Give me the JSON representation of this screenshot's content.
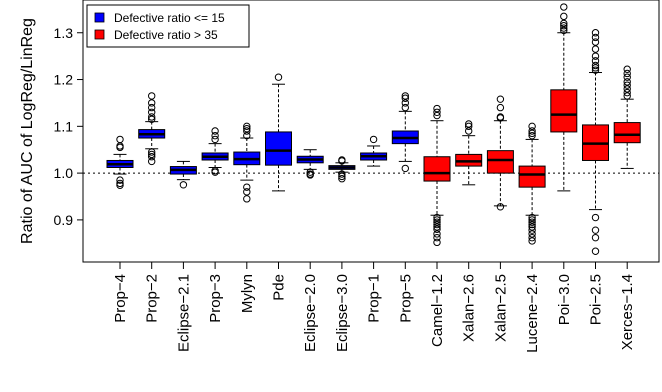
{
  "chart_data": {
    "type": "boxplot",
    "title": "",
    "xlabel": "",
    "ylabel": "Ratio of AUC of LogReg/LinReg",
    "ylim": [
      0.81,
      1.37
    ],
    "yticks": [
      0.9,
      1.0,
      1.1,
      1.2,
      1.3
    ],
    "ytick_labels": [
      "0.9",
      "1.0",
      "1.1",
      "1.2",
      "1.3"
    ],
    "reference_line": {
      "y": 1.0,
      "style": "dotted"
    },
    "legend": {
      "position": "top-left",
      "entries": [
        {
          "label": "Defective ratio <= 15",
          "color": "#0000ff"
        },
        {
          "label": "Defective ratio > 35",
          "color": "#ff0000"
        }
      ]
    },
    "boxes": [
      {
        "label": "Prop−4",
        "group": 0,
        "q1": 1.012,
        "median": 1.019,
        "q3": 1.027,
        "whisker_low": 0.998,
        "whisker_high": 1.04,
        "outliers": [
          1.055,
          1.058,
          1.072,
          0.985,
          0.978,
          0.974
        ]
      },
      {
        "label": "Prop−2",
        "group": 0,
        "q1": 1.075,
        "median": 1.083,
        "q3": 1.093,
        "whisker_low": 1.052,
        "whisker_high": 1.11,
        "outliers": [
          1.115,
          1.12,
          1.13,
          1.14,
          1.15,
          1.165,
          1.045,
          1.04,
          1.035,
          1.025
        ]
      },
      {
        "label": "Eclipse−2.1",
        "group": 0,
        "q1": 0.998,
        "median": 1.007,
        "q3": 1.014,
        "whisker_low": 0.986,
        "whisker_high": 1.025,
        "outliers": [
          0.975
        ]
      },
      {
        "label": "Prop−3",
        "group": 0,
        "q1": 1.028,
        "median": 1.035,
        "q3": 1.043,
        "whisker_low": 1.012,
        "whisker_high": 1.063,
        "outliers": [
          1.072,
          1.08,
          1.09,
          1.005,
          1.002
        ]
      },
      {
        "label": "Mylyn",
        "group": 0,
        "q1": 1.018,
        "median": 1.03,
        "q3": 1.045,
        "whisker_low": 0.985,
        "whisker_high": 1.075,
        "outliers": [
          1.08,
          1.09,
          1.095,
          1.1,
          0.97,
          0.96,
          0.945
        ]
      },
      {
        "label": "Pde",
        "group": 0,
        "q1": 1.017,
        "median": 1.048,
        "q3": 1.088,
        "whisker_low": 0.962,
        "whisker_high": 1.19,
        "outliers": [
          1.205
        ]
      },
      {
        "label": "Eclipse−2.0",
        "group": 0,
        "q1": 1.022,
        "median": 1.029,
        "q3": 1.036,
        "whisker_low": 1.008,
        "whisker_high": 1.05,
        "outliers": [
          1.002,
          0.998,
          0.996
        ]
      },
      {
        "label": "Eclipse−3.0",
        "group": 0,
        "q1": 1.008,
        "median": 1.012,
        "q3": 1.016,
        "whisker_low": 1.002,
        "whisker_high": 1.022,
        "outliers": [
          1.026,
          1.028,
          0.998,
          0.993,
          0.988
        ]
      },
      {
        "label": "Prop−1",
        "group": 0,
        "q1": 1.028,
        "median": 1.036,
        "q3": 1.043,
        "whisker_low": 1.015,
        "whisker_high": 1.058,
        "outliers": [
          1.072
        ]
      },
      {
        "label": "Prop−5",
        "group": 0,
        "q1": 1.063,
        "median": 1.075,
        "q3": 1.09,
        "whisker_low": 1.025,
        "whisker_high": 1.132,
        "outliers": [
          1.14,
          1.15,
          1.16,
          1.165,
          1.01
        ]
      },
      {
        "label": "Camel−1.2",
        "group": 1,
        "q1": 0.983,
        "median": 1.0,
        "q3": 1.035,
        "whisker_low": 0.91,
        "whisker_high": 1.112,
        "outliers": [
          1.123,
          1.13,
          1.138,
          0.905,
          0.9,
          0.895,
          0.89,
          0.885,
          0.88,
          0.87,
          0.862,
          0.852
        ]
      },
      {
        "label": "Xalan−2.6",
        "group": 1,
        "q1": 1.015,
        "median": 1.025,
        "q3": 1.04,
        "whisker_low": 0.975,
        "whisker_high": 1.08,
        "outliers": [
          1.09,
          1.1,
          1.105
        ]
      },
      {
        "label": "Xalan−2.5",
        "group": 1,
        "q1": 1.0,
        "median": 1.028,
        "q3": 1.048,
        "whisker_low": 0.93,
        "whisker_high": 1.112,
        "outliers": [
          1.118,
          1.12,
          1.14,
          1.158,
          0.928
        ]
      },
      {
        "label": "Lucene−2.4",
        "group": 1,
        "q1": 0.97,
        "median": 0.997,
        "q3": 1.015,
        "whisker_low": 0.91,
        "whisker_high": 1.072,
        "outliers": [
          1.08,
          1.085,
          1.09,
          1.1,
          0.905,
          0.9,
          0.895,
          0.89,
          0.885,
          0.878,
          0.87,
          0.862,
          0.855
        ]
      },
      {
        "label": "Poi−3.0",
        "group": 1,
        "q1": 1.088,
        "median": 1.125,
        "q3": 1.178,
        "whisker_low": 0.962,
        "whisker_high": 1.3,
        "outliers": [
          1.305,
          1.31,
          1.315,
          1.32,
          1.335,
          1.355
        ]
      },
      {
        "label": "Poi−2.5",
        "group": 1,
        "q1": 1.027,
        "median": 1.063,
        "q3": 1.103,
        "whisker_low": 0.922,
        "whisker_high": 1.215,
        "outliers": [
          1.22,
          1.225,
          1.23,
          1.24,
          1.25,
          1.265,
          1.28,
          1.29,
          1.3,
          0.905,
          0.878,
          0.862,
          0.833
        ]
      },
      {
        "label": "Xerces−1.4",
        "group": 1,
        "q1": 1.065,
        "median": 1.082,
        "q3": 1.108,
        "whisker_low": 1.01,
        "whisker_high": 1.158,
        "outliers": [
          1.165,
          1.172,
          1.18,
          1.188,
          1.195,
          1.205,
          1.213,
          1.222
        ]
      }
    ]
  }
}
